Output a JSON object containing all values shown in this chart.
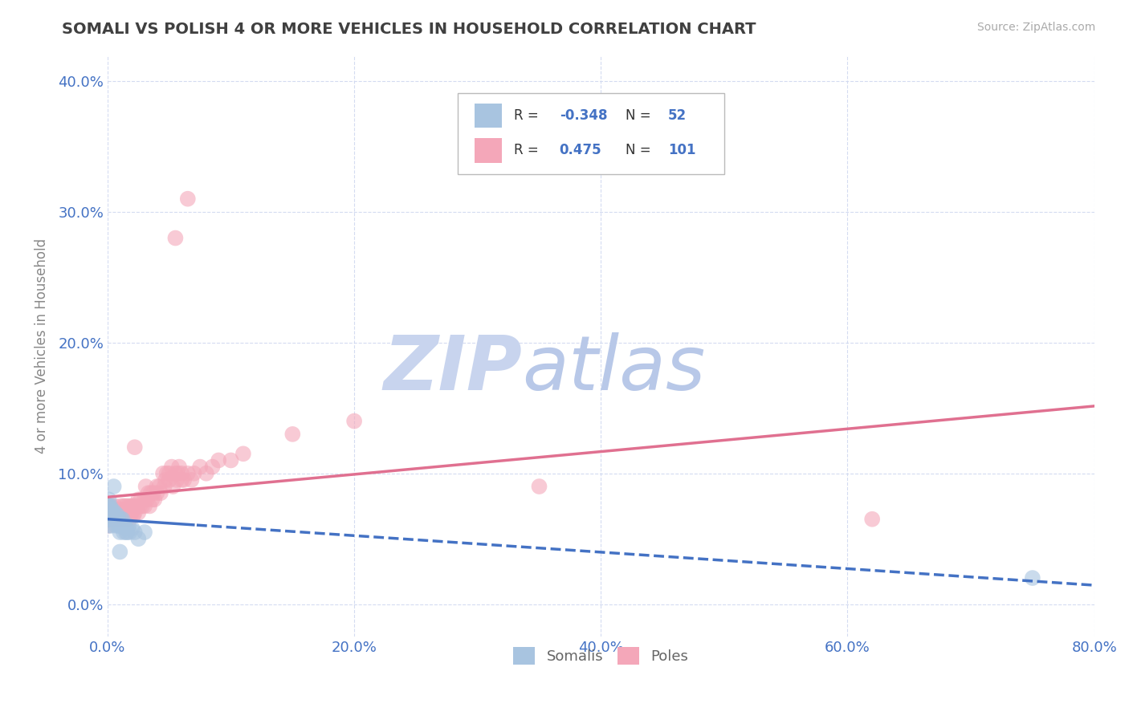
{
  "title": "SOMALI VS POLISH 4 OR MORE VEHICLES IN HOUSEHOLD CORRELATION CHART",
  "source_text": "Source: ZipAtlas.com",
  "xlabel_ticks": [
    "0.0%",
    "20.0%",
    "40.0%",
    "60.0%",
    "80.0%"
  ],
  "ylabel_ticks": [
    "0.0%",
    "10.0%",
    "20.0%",
    "30.0%",
    "40.0%"
  ],
  "xlim": [
    0.0,
    0.8
  ],
  "ylim": [
    -0.025,
    0.42
  ],
  "ylabel": "4 or more Vehicles in Household",
  "somali_R": -0.348,
  "somali_N": 52,
  "polish_R": 0.475,
  "polish_N": 101,
  "somali_color": "#a8c4e0",
  "polish_color": "#f4a7b9",
  "somali_line_color": "#4472c4",
  "polish_line_color": "#e07090",
  "somali_scatter": [
    [
      0.0,
      0.075
    ],
    [
      0.0,
      0.068
    ],
    [
      0.0,
      0.07
    ],
    [
      0.0,
      0.065
    ],
    [
      0.0,
      0.072
    ],
    [
      0.001,
      0.08
    ],
    [
      0.001,
      0.065
    ],
    [
      0.001,
      0.07
    ],
    [
      0.001,
      0.075
    ],
    [
      0.001,
      0.06
    ],
    [
      0.002,
      0.07
    ],
    [
      0.002,
      0.065
    ],
    [
      0.002,
      0.068
    ],
    [
      0.002,
      0.072
    ],
    [
      0.002,
      0.075
    ],
    [
      0.003,
      0.065
    ],
    [
      0.003,
      0.07
    ],
    [
      0.003,
      0.068
    ],
    [
      0.003,
      0.06
    ],
    [
      0.004,
      0.065
    ],
    [
      0.004,
      0.07
    ],
    [
      0.004,
      0.068
    ],
    [
      0.004,
      0.072
    ],
    [
      0.005,
      0.065
    ],
    [
      0.005,
      0.09
    ],
    [
      0.005,
      0.068
    ],
    [
      0.006,
      0.065
    ],
    [
      0.006,
      0.07
    ],
    [
      0.007,
      0.065
    ],
    [
      0.007,
      0.06
    ],
    [
      0.008,
      0.065
    ],
    [
      0.008,
      0.068
    ],
    [
      0.009,
      0.06
    ],
    [
      0.009,
      0.065
    ],
    [
      0.01,
      0.06
    ],
    [
      0.01,
      0.055
    ],
    [
      0.011,
      0.065
    ],
    [
      0.012,
      0.06
    ],
    [
      0.012,
      0.065
    ],
    [
      0.013,
      0.055
    ],
    [
      0.014,
      0.06
    ],
    [
      0.015,
      0.055
    ],
    [
      0.015,
      0.058
    ],
    [
      0.016,
      0.055
    ],
    [
      0.017,
      0.06
    ],
    [
      0.018,
      0.055
    ],
    [
      0.02,
      0.058
    ],
    [
      0.022,
      0.055
    ],
    [
      0.025,
      0.05
    ],
    [
      0.03,
      0.055
    ],
    [
      0.75,
      0.02
    ],
    [
      0.01,
      0.04
    ]
  ],
  "polish_scatter": [
    [
      0.0,
      0.06
    ],
    [
      0.0,
      0.07
    ],
    [
      0.0,
      0.065
    ],
    [
      0.001,
      0.07
    ],
    [
      0.001,
      0.065
    ],
    [
      0.002,
      0.075
    ],
    [
      0.002,
      0.065
    ],
    [
      0.002,
      0.07
    ],
    [
      0.003,
      0.068
    ],
    [
      0.003,
      0.075
    ],
    [
      0.003,
      0.065
    ],
    [
      0.004,
      0.07
    ],
    [
      0.004,
      0.065
    ],
    [
      0.005,
      0.072
    ],
    [
      0.005,
      0.068
    ],
    [
      0.005,
      0.065
    ],
    [
      0.006,
      0.07
    ],
    [
      0.006,
      0.065
    ],
    [
      0.006,
      0.075
    ],
    [
      0.007,
      0.065
    ],
    [
      0.007,
      0.07
    ],
    [
      0.008,
      0.065
    ],
    [
      0.008,
      0.07
    ],
    [
      0.009,
      0.068
    ],
    [
      0.009,
      0.072
    ],
    [
      0.01,
      0.07
    ],
    [
      0.01,
      0.068
    ],
    [
      0.011,
      0.075
    ],
    [
      0.011,
      0.07
    ],
    [
      0.012,
      0.072
    ],
    [
      0.012,
      0.065
    ],
    [
      0.013,
      0.07
    ],
    [
      0.013,
      0.075
    ],
    [
      0.014,
      0.07
    ],
    [
      0.014,
      0.065
    ],
    [
      0.015,
      0.075
    ],
    [
      0.015,
      0.07
    ],
    [
      0.016,
      0.072
    ],
    [
      0.016,
      0.065
    ],
    [
      0.017,
      0.07
    ],
    [
      0.017,
      0.075
    ],
    [
      0.018,
      0.068
    ],
    [
      0.018,
      0.065
    ],
    [
      0.019,
      0.075
    ],
    [
      0.019,
      0.07
    ],
    [
      0.02,
      0.075
    ],
    [
      0.02,
      0.07
    ],
    [
      0.021,
      0.075
    ],
    [
      0.021,
      0.068
    ],
    [
      0.022,
      0.07
    ],
    [
      0.022,
      0.12
    ],
    [
      0.023,
      0.075
    ],
    [
      0.025,
      0.07
    ],
    [
      0.025,
      0.08
    ],
    [
      0.026,
      0.075
    ],
    [
      0.027,
      0.08
    ],
    [
      0.028,
      0.075
    ],
    [
      0.03,
      0.08
    ],
    [
      0.03,
      0.075
    ],
    [
      0.031,
      0.09
    ],
    [
      0.032,
      0.08
    ],
    [
      0.033,
      0.085
    ],
    [
      0.034,
      0.075
    ],
    [
      0.035,
      0.085
    ],
    [
      0.036,
      0.08
    ],
    [
      0.037,
      0.085
    ],
    [
      0.038,
      0.08
    ],
    [
      0.04,
      0.085
    ],
    [
      0.04,
      0.09
    ],
    [
      0.042,
      0.09
    ],
    [
      0.043,
      0.085
    ],
    [
      0.045,
      0.1
    ],
    [
      0.046,
      0.09
    ],
    [
      0.047,
      0.095
    ],
    [
      0.048,
      0.1
    ],
    [
      0.05,
      0.1
    ],
    [
      0.05,
      0.095
    ],
    [
      0.052,
      0.105
    ],
    [
      0.053,
      0.09
    ],
    [
      0.055,
      0.1
    ],
    [
      0.055,
      0.28
    ],
    [
      0.056,
      0.095
    ],
    [
      0.057,
      0.1
    ],
    [
      0.058,
      0.105
    ],
    [
      0.06,
      0.1
    ],
    [
      0.06,
      0.095
    ],
    [
      0.062,
      0.095
    ],
    [
      0.065,
      0.31
    ],
    [
      0.065,
      0.1
    ],
    [
      0.068,
      0.095
    ],
    [
      0.07,
      0.1
    ],
    [
      0.075,
      0.105
    ],
    [
      0.08,
      0.1
    ],
    [
      0.085,
      0.105
    ],
    [
      0.09,
      0.11
    ],
    [
      0.1,
      0.11
    ],
    [
      0.11,
      0.115
    ],
    [
      0.15,
      0.13
    ],
    [
      0.2,
      0.14
    ],
    [
      0.35,
      0.09
    ],
    [
      0.62,
      0.065
    ]
  ],
  "watermark_line1": "ZIP",
  "watermark_line2": "atlas",
  "watermark_color": "#dce4f5",
  "legend_somali_color": "#a8c4e0",
  "legend_polish_color": "#f4a7b9",
  "title_color": "#404040",
  "axis_label_color": "#4472c4",
  "stat_color": "#4472c4"
}
